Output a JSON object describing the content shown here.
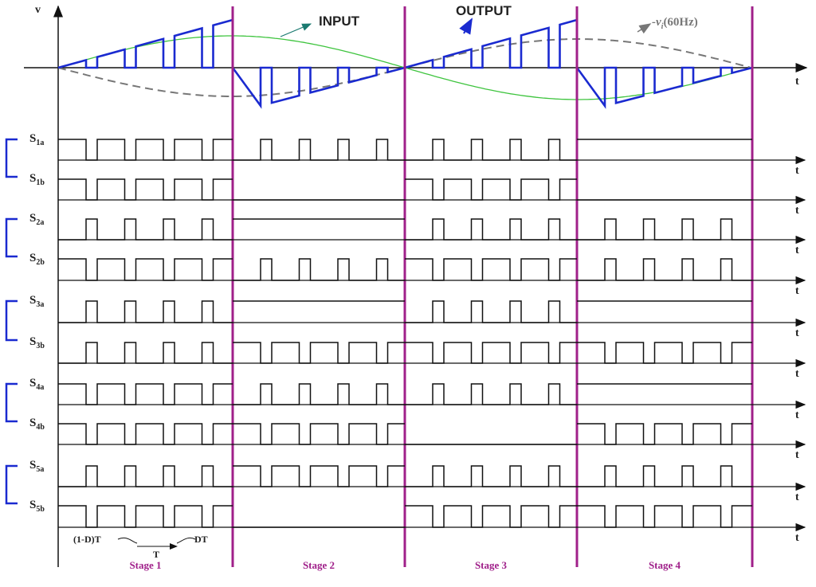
{
  "axis": {
    "v_label": "v",
    "t_label": "t"
  },
  "annotations": {
    "input": "INPUT",
    "output": "OUTPUT",
    "reference": {
      "prefix": "-v",
      "subscript": "i",
      "suffix": "(60Hz)"
    }
  },
  "switches": [
    {
      "symbol": "S",
      "subscript": "1a"
    },
    {
      "symbol": "S",
      "subscript": "1b"
    },
    {
      "symbol": "S",
      "subscript": "2a"
    },
    {
      "symbol": "S",
      "subscript": "2b"
    },
    {
      "symbol": "S",
      "subscript": "3a"
    },
    {
      "symbol": "S",
      "subscript": "3b"
    },
    {
      "symbol": "S",
      "subscript": "4a"
    },
    {
      "symbol": "S",
      "subscript": "4b"
    },
    {
      "symbol": "S",
      "subscript": "5a"
    },
    {
      "symbol": "S",
      "subscript": "5b"
    }
  ],
  "timing": {
    "off_time": "(1-D)T",
    "period": "T",
    "on_time": "DT"
  },
  "stages": [
    "Stage 1",
    "Stage 2",
    "Stage 3",
    "Stage 4"
  ]
}
